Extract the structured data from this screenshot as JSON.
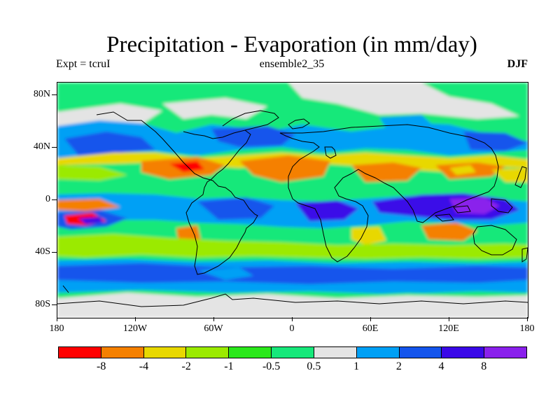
{
  "title": "Precipitation - Evaporation (in mm/day)",
  "subtitle_left": "Expt = tcruI",
  "subtitle_center": "ensemble2_35",
  "subtitle_right": "DJF",
  "lat_labels": [
    "80N",
    "40N",
    "0",
    "40S",
    "80S"
  ],
  "lon_labels": [
    "180",
    "120W",
    "60W",
    "0",
    "60E",
    "120E",
    "180"
  ],
  "colorbar": {
    "colors": [
      "#ff0000",
      "#f58000",
      "#e8d800",
      "#9bea00",
      "#2ae81a",
      "#16e87a",
      "#e4e4e4",
      "#00a0f5",
      "#1455ec",
      "#3a08e8",
      "#8a20ec"
    ],
    "labels": [
      "-8",
      "-4",
      "-2",
      "-1",
      "-0.5",
      "0.5",
      "1",
      "2",
      "4",
      "8"
    ]
  }
}
